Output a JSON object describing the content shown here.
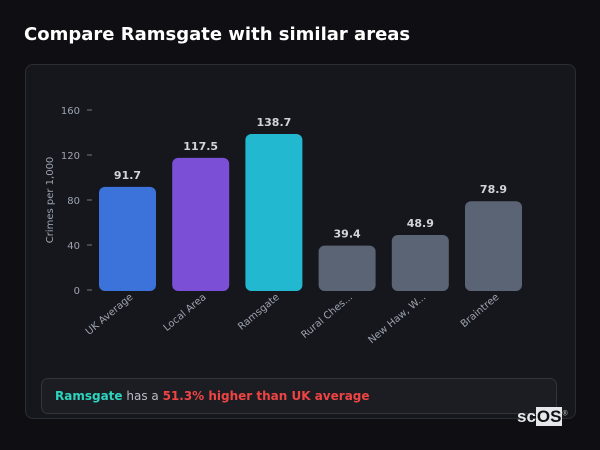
{
  "title": "Compare Ramsgate with similar areas",
  "chart_data": {
    "type": "bar",
    "categories": [
      "UK Average",
      "Local Area",
      "Ramsgate",
      "Rural Ches...",
      "New Haw, W...",
      "Braintree"
    ],
    "values": [
      91.7,
      117.5,
      138.7,
      39.4,
      48.9,
      78.9
    ],
    "value_labels": [
      "91.7",
      "117.5",
      "138.7",
      "39.4",
      "48.9",
      "78.9"
    ],
    "colors": [
      "#3b73db",
      "#7b4fd6",
      "#22b8cf",
      "#5b6474",
      "#5b6474",
      "#5b6474"
    ],
    "xlabel": "",
    "ylabel": "Crimes per 1,000",
    "ylim": [
      0,
      160
    ],
    "yticks": [
      0,
      40,
      80,
      120,
      160
    ],
    "grid": false,
    "legend": "none"
  },
  "summary": {
    "area": "Ramsgate",
    "connector": " has a ",
    "comparison": "51.3% higher than UK average"
  },
  "logo": {
    "text_sc": "sc",
    "text_os": "OS",
    "mark": "®"
  }
}
